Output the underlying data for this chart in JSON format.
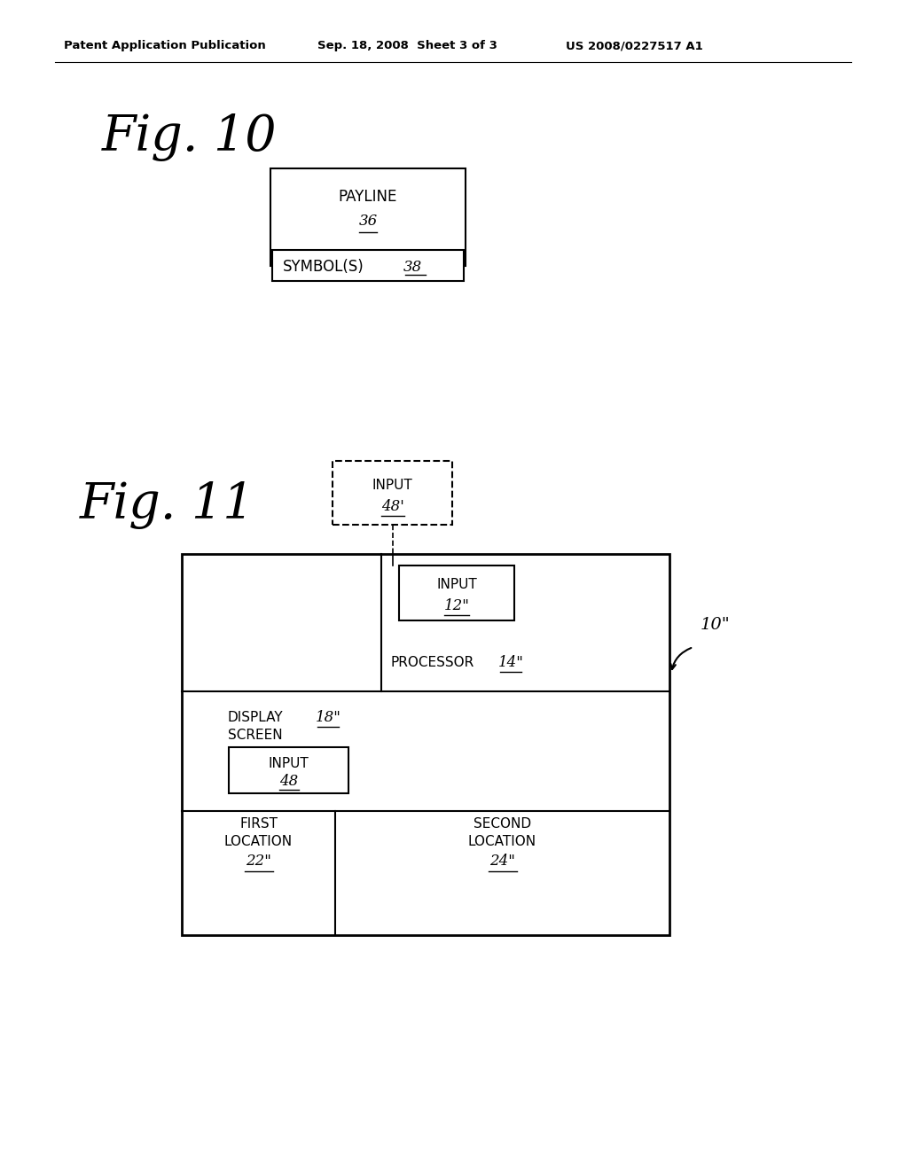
{
  "bg_color": "#ffffff",
  "header_left": "Patent Application Publication",
  "header_center": "Sep. 18, 2008  Sheet 3 of 3",
  "header_right": "US 2008/0227517 A1",
  "fig10_label": "Fig. 10",
  "fig11_label": "Fig. 11",
  "fig10_box1_text": "PAYLINE",
  "fig10_box1_num": "36",
  "fig10_box2_text": "SYMBOL(S)",
  "fig10_box2_num": "38",
  "fig11_input_dashed_text": "INPUT",
  "fig11_input_dashed_num": "48'",
  "fig11_input_box_text": "INPUT",
  "fig11_input_box_num": "12\"",
  "fig11_processor_text": "PROCESSOR",
  "fig11_processor_num": "14\"",
  "fig11_display_line1": "DISPLAY",
  "fig11_display_line2": "SCREEN",
  "fig11_display_num": "18\"",
  "fig11_input48_text": "INPUT",
  "fig11_input48_num": "48",
  "fig11_first_loc_line1": "FIRST",
  "fig11_first_loc_line2": "LOCATION",
  "fig11_first_loc_num": "22\"",
  "fig11_second_loc_line1": "SECOND",
  "fig11_second_loc_line2": "LOCATION",
  "fig11_second_loc_num": "24\"",
  "fig11_outer_num": "10\""
}
